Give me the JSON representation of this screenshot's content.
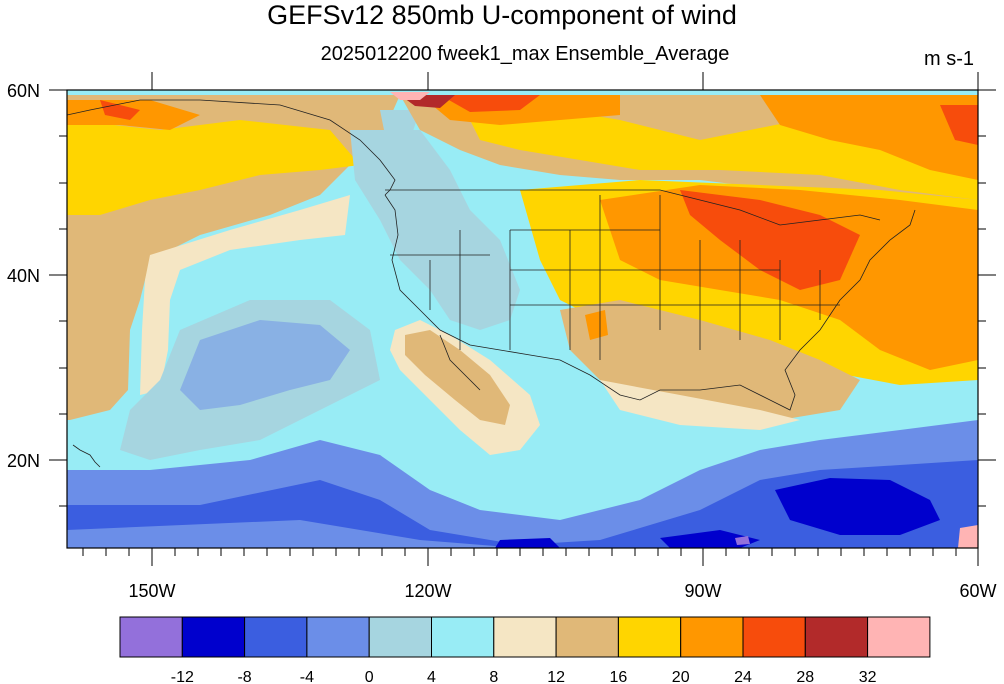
{
  "title": "GEFSv12 850mb U-component of wind",
  "subtitle": "2025012200 fweek1_max Ensemble_Average",
  "units": "m s-1",
  "map": {
    "lat_labels": [
      "60N",
      "40N",
      "20N"
    ],
    "lon_labels": [
      "150W",
      "120W",
      "90W",
      "60W"
    ]
  },
  "colorbar": {
    "colors": [
      "#9370db",
      "#0000cd",
      "#3b5ee0",
      "#6b8ee8",
      "#a6d5e0",
      "#98ecf5",
      "#f5e6c4",
      "#e0b878",
      "#ffd500",
      "#ff9700",
      "#f74c0c",
      "#b22a2a",
      "#ffb4b4"
    ],
    "tick_labels": [
      "-12",
      "-8",
      "-4",
      "0",
      "4",
      "8",
      "12",
      "16",
      "20",
      "24",
      "28",
      "32"
    ]
  }
}
